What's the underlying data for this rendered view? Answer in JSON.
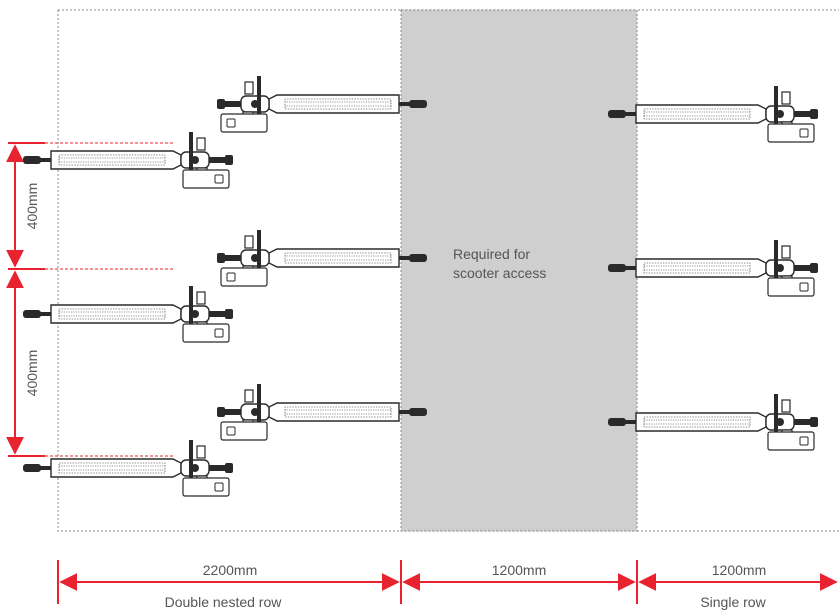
{
  "diagram": {
    "access_zone_label_line1": "Required for",
    "access_zone_label_line2": "scooter access",
    "vertical_dims": [
      {
        "label": "400mm"
      },
      {
        "label": "400mm"
      }
    ],
    "horizontal_dims": [
      {
        "label": "2200mm"
      },
      {
        "label": "1200mm"
      },
      {
        "label": "1200mm"
      }
    ],
    "row_labels": {
      "double": "Double nested row",
      "single": "Single row"
    },
    "scooter_groups": {
      "double_nested_pairs": 3,
      "single_row_count": 3
    },
    "colors": {
      "dimension": "#e8222e",
      "access_zone_fill": "#cfcfcf",
      "outline": "#8a8a8a",
      "scooter": "#2a2a2a",
      "text": "#555555"
    }
  }
}
